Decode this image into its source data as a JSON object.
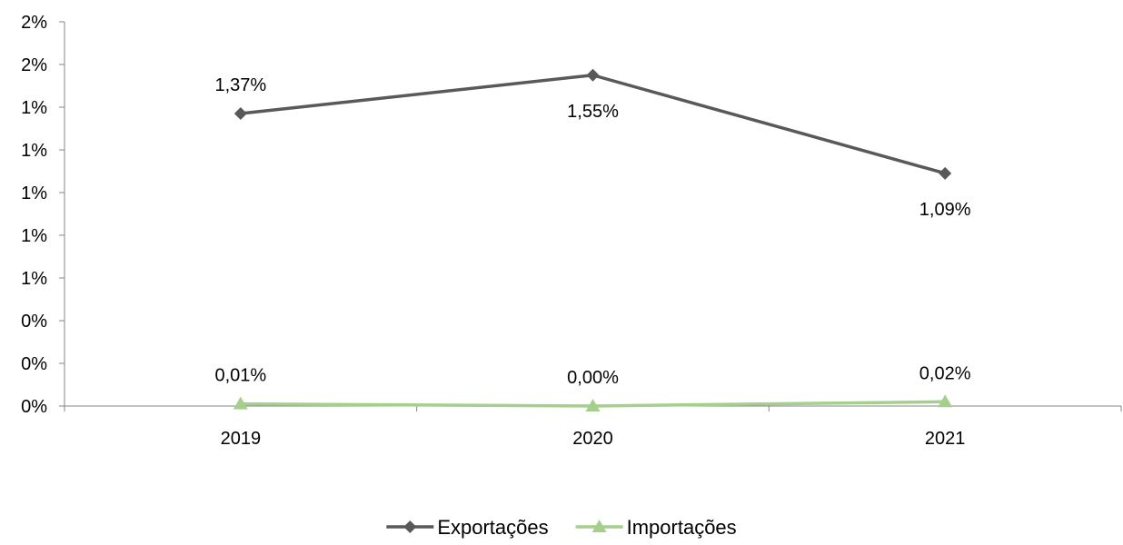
{
  "chart_data": {
    "type": "line",
    "title": "",
    "xlabel": "",
    "ylabel": "",
    "categories": [
      "2019",
      "2020",
      "2021"
    ],
    "ylim": [
      0,
      1.8
    ],
    "y_tick_values": [
      0,
      0.2,
      0.4,
      0.6,
      0.8,
      1.0,
      1.2,
      1.4,
      1.6,
      1.8
    ],
    "y_tick_labels": [
      "0%",
      "0%",
      "0%",
      "1%",
      "1%",
      "1%",
      "1%",
      "1%",
      "2%",
      "2%"
    ],
    "grid": false,
    "legend_position": "bottom",
    "series": [
      {
        "name": "Exportações",
        "values": [
          1.37,
          1.55,
          1.09
        ],
        "labels": [
          "1,37%",
          "1,55%",
          "1,09%"
        ],
        "label_positions": [
          "above",
          "below",
          "below"
        ],
        "color": "#595959",
        "marker": "diamond"
      },
      {
        "name": "Importações",
        "values": [
          0.01,
          0.0,
          0.02
        ],
        "labels": [
          "0,01%",
          "0,00%",
          "0,02%"
        ],
        "label_positions": [
          "above",
          "above",
          "above"
        ],
        "color": "#A4D08C",
        "marker": "triangle"
      }
    ]
  }
}
